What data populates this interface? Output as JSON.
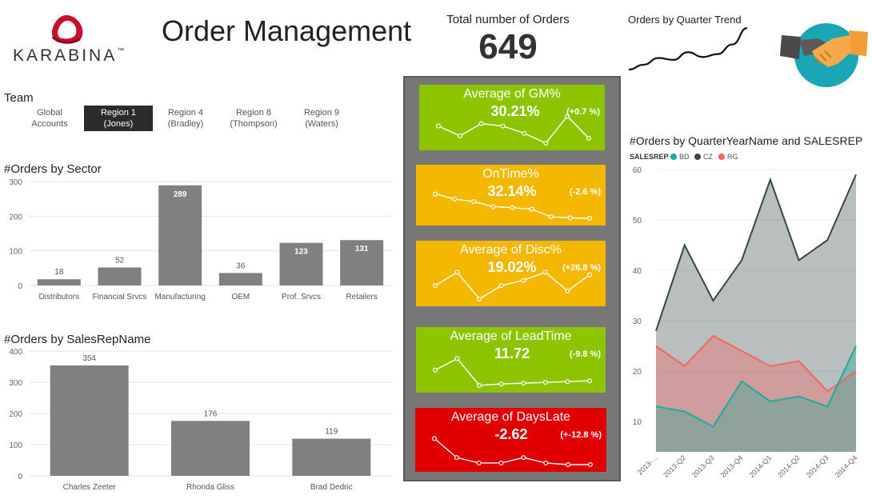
{
  "header": {
    "logo_text": "KARABINA",
    "logo_mark": "™",
    "title": "Order Management",
    "total_label": "Total number of Orders",
    "total_value": "649",
    "trend_label": "Orders by Quarter Trend"
  },
  "colors": {
    "bar": "#808080",
    "kpi_green": "#8dc400",
    "kpi_amber": "#f4b800",
    "kpi_red": "#e00000",
    "panel": "#777777",
    "series_bd": "#1aab9b",
    "series_cz": "#374649",
    "series_rg": "#fd625e",
    "logo_red": "#c8102e",
    "icon_teal": "#1aa7b5"
  },
  "icons": [
    "karabina-logo-icon",
    "handshake-icon"
  ],
  "team": {
    "label": "Team",
    "options": [
      {
        "label": "Global\nAccounts",
        "selected": false
      },
      {
        "label": "Region 1\n(Jones)",
        "selected": true
      },
      {
        "label": "Region 4\n(Bradley)",
        "selected": false
      },
      {
        "label": "Region 8\n(Thompson)",
        "selected": false
      },
      {
        "label": "Region 9\n(Waters)",
        "selected": false
      }
    ]
  },
  "kpis": [
    {
      "title": "Average of GM%",
      "value": "30.21%",
      "change": "(+0.7 %)",
      "color": "green"
    },
    {
      "title": "OnTime%",
      "value": "32.14%",
      "change": "(-2.6 %)",
      "color": "amber"
    },
    {
      "title": "Average of Disc%",
      "value": "19.02%",
      "change": "(+26.8 %)",
      "color": "amber"
    },
    {
      "title": "Average of LeadTime",
      "value": "11.72",
      "change": "(-9.8 %)",
      "color": "green"
    },
    {
      "title": "Average of DaysLate",
      "value": "-2.62",
      "change": "(+-12.8 %)",
      "color": "red"
    }
  ],
  "chart_data": [
    {
      "id": "sector",
      "type": "bar",
      "title": "#Orders by Sector",
      "categories": [
        "Distributors",
        "Financial Srvcs",
        "Manufacturing",
        "OEM",
        "Prof. Srvcs",
        "Retailers"
      ],
      "values": [
        18,
        52,
        289,
        36,
        123,
        131
      ],
      "ylim": [
        0,
        300
      ],
      "yticks": [
        0,
        100,
        200,
        300
      ],
      "grid": true
    },
    {
      "id": "salesrep",
      "type": "bar",
      "title": "#Orders by SalesRepName",
      "categories": [
        "Charles Zeeter",
        "Rhonda Gliss",
        "Brad Dedric"
      ],
      "values": [
        354,
        176,
        119
      ],
      "ylim": [
        0,
        400
      ],
      "yticks": [
        0,
        100,
        200,
        300,
        400
      ],
      "grid": true
    },
    {
      "id": "quarter",
      "type": "area",
      "title": "#Orders by QuarterYearName and SALESREP",
      "legend_title": "SALESREP",
      "legend_placement": "top-left",
      "x": [
        "2013-...",
        "2013-Q2",
        "2013-Q3",
        "2013-Q4",
        "2014-Q1",
        "2014-Q2",
        "2014-Q3",
        "2014-Q4"
      ],
      "ylim": [
        0,
        60
      ],
      "yticks": [
        10,
        20,
        30,
        40,
        50,
        60
      ],
      "series": [
        {
          "name": "CZ",
          "color": "#374649",
          "values": [
            28,
            45,
            34,
            42,
            58,
            42,
            46,
            59
          ]
        },
        {
          "name": "RG",
          "color": "#fd625e",
          "values": [
            25,
            21,
            27,
            24,
            21,
            22,
            16,
            20
          ]
        },
        {
          "name": "BD",
          "color": "#1aab9b",
          "values": [
            13,
            12,
            9,
            18,
            14,
            15,
            13,
            25
          ]
        }
      ]
    },
    {
      "id": "trend",
      "type": "line",
      "values": [
        0,
        0.5,
        1.2,
        1.0,
        1.8,
        1.3,
        1.6,
        2.6,
        4.3
      ]
    },
    {
      "id": "kpi_gm",
      "type": "line",
      "values": [
        5.0,
        3.0,
        5.5,
        5.0,
        3.5,
        1.5,
        7.0,
        2.5
      ]
    },
    {
      "id": "kpi_ontime",
      "type": "line",
      "values": [
        5.5,
        4.5,
        4.0,
        3.0,
        2.8,
        2.5,
        1.0,
        0.8,
        0.7
      ]
    },
    {
      "id": "kpi_disc",
      "type": "line",
      "values": [
        3.0,
        5.5,
        0.5,
        3.0,
        4.0,
        5.5,
        2.0,
        5.0
      ]
    },
    {
      "id": "kpi_leadtime",
      "type": "line",
      "values": [
        2.0,
        3.5,
        0,
        0.2,
        0.3,
        0.4,
        0.5,
        0.6
      ]
    },
    {
      "id": "kpi_dayslate",
      "type": "line",
      "values": [
        6.0,
        2.5,
        1.5,
        1.5,
        2.5,
        1.5,
        1.2,
        1.2
      ]
    }
  ]
}
